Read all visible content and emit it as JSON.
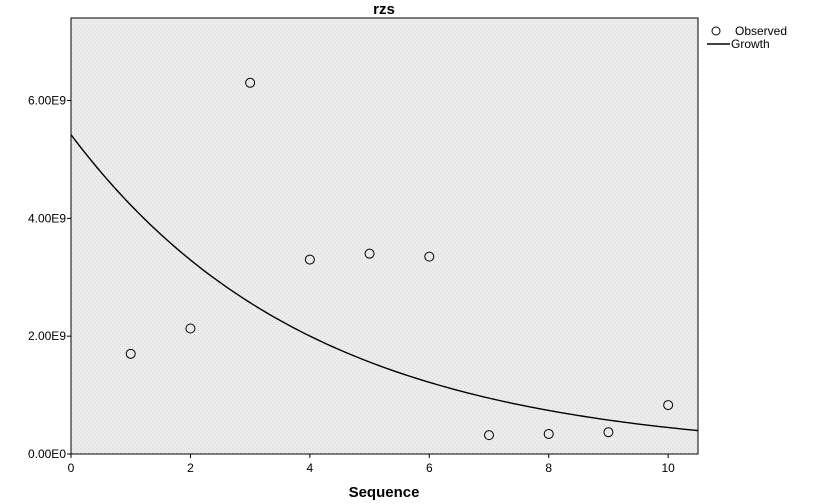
{
  "chart_data": {
    "type": "scatter",
    "title": "rzs",
    "xlabel": "Sequence",
    "ylabel": "",
    "xlim": [
      0,
      10.5
    ],
    "ylim": [
      0,
      7400000000
    ],
    "x_ticks": [
      0,
      2,
      4,
      6,
      8,
      10
    ],
    "x_tick_labels": [
      "0",
      "2",
      "4",
      "6",
      "8",
      "10"
    ],
    "y_ticks": [
      0,
      2000000000,
      4000000000,
      6000000000
    ],
    "y_tick_labels": [
      "0.00E0",
      "2.00E9",
      "4.00E9",
      "6.00E9"
    ],
    "grid": false,
    "legend_position": "top-right",
    "series": [
      {
        "name": "Observed",
        "kind": "points",
        "x": [
          1,
          2,
          3,
          4,
          5,
          6,
          7,
          8,
          9,
          10
        ],
        "y": [
          1700000000,
          2130000000,
          6300000000,
          3300000000,
          3400000000,
          3350000000,
          320000000,
          340000000,
          370000000,
          830000000
        ]
      },
      {
        "name": "Growth",
        "kind": "curve",
        "model": "exponential",
        "y0": 5420000000,
        "rate": -0.249,
        "x_range": [
          0,
          10.5
        ]
      }
    ]
  }
}
